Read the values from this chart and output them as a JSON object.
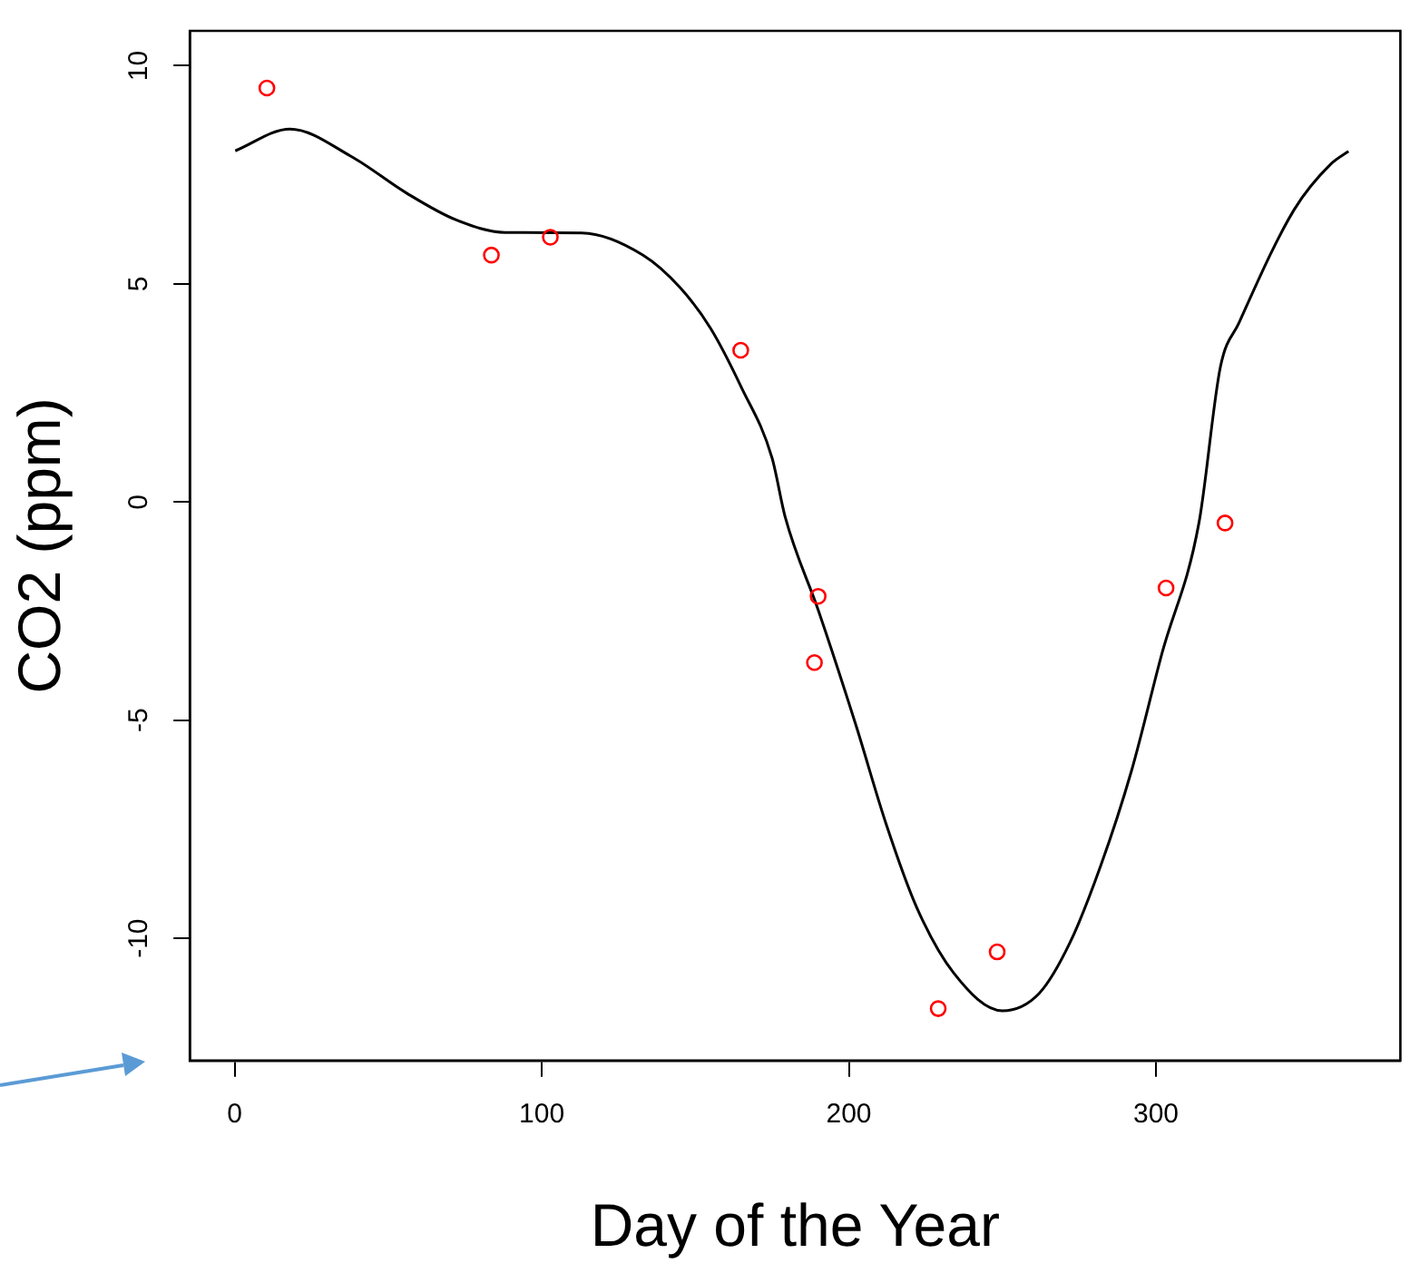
{
  "chart_data": {
    "type": "scatter",
    "xlabel": "Day of the Year",
    "ylabel": "CO2 (ppm)",
    "xlim": [
      -14.6,
      379.6
    ],
    "ylim": [
      -12.8,
      10.8
    ],
    "xticks": [
      0,
      100,
      200,
      300
    ],
    "yticks": [
      -10,
      -5,
      0,
      5,
      10
    ],
    "grid": false,
    "legend": false,
    "marker": "circle",
    "series": [
      {
        "type": "scatter",
        "color": "#ff0000",
        "x": [
          10.5,
          83.6,
          102.8,
          164.8,
          190.0,
          188.8,
          229.1,
          248.3,
          303.3,
          322.5
        ],
        "values": [
          9.49,
          5.66,
          6.07,
          3.48,
          -2.16,
          -3.68,
          -11.61,
          -10.31,
          -1.97,
          -0.48
        ]
      },
      {
        "type": "line",
        "color": "#000000",
        "marker": "none",
        "x": [
          0.2,
          18,
          38,
          56,
          72,
          88,
          113,
          133,
          145,
          155,
          165,
          175,
          179.3,
          190.2,
          202.2,
          212.2,
          222.1,
          234.1,
          250,
          262,
          272,
          282,
          292,
          302,
          314,
          321,
          327,
          345,
          357,
          362.7
        ],
        "values": [
          8.05,
          8.55,
          7.92,
          7.08,
          6.47,
          6.18,
          6.17,
          5.66,
          4.92,
          3.98,
          2.63,
          1.01,
          -0.35,
          -2.51,
          -5.09,
          -7.39,
          -9.29,
          -10.79,
          -11.66,
          -11.26,
          -10.1,
          -8.34,
          -6.17,
          -3.46,
          -0.48,
          3.1,
          4.1,
          6.7,
          7.75,
          8.04
        ]
      }
    ]
  }
}
